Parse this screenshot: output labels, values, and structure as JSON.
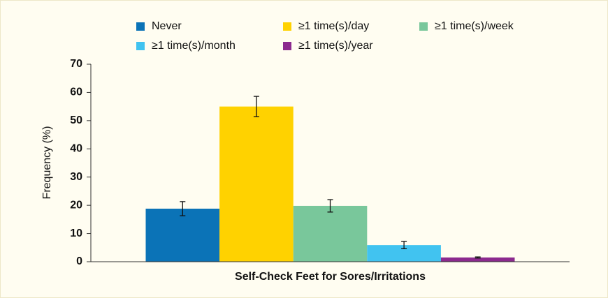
{
  "chart_data": {
    "type": "bar",
    "y_label": "Frequency (%)",
    "categories": [
      "Self-Check Feet for Sores/Irritations"
    ],
    "series": [
      {
        "name": "Never",
        "color": "#0b73b7",
        "values": [
          18.8
        ],
        "errors": [
          2.5
        ]
      },
      {
        "name": "≥1 time(s)/day",
        "color": "#ffd200",
        "values": [
          55.0
        ],
        "errors": [
          3.6
        ]
      },
      {
        "name": "≥1 time(s)/week",
        "color": "#79c79b",
        "values": [
          19.8
        ],
        "errors": [
          2.2
        ]
      },
      {
        "name": "≥1 time(s)/month",
        "color": "#41c3f0",
        "values": [
          5.9
        ],
        "errors": [
          1.3
        ]
      },
      {
        "name": "≥1 time(s)/year",
        "color": "#8c2a8e",
        "values": [
          1.5
        ],
        "errors": [
          0.2
        ]
      }
    ],
    "ylim": [
      0,
      70
    ],
    "yticks": [
      0,
      10,
      20,
      30,
      40,
      50,
      60,
      70
    ]
  }
}
